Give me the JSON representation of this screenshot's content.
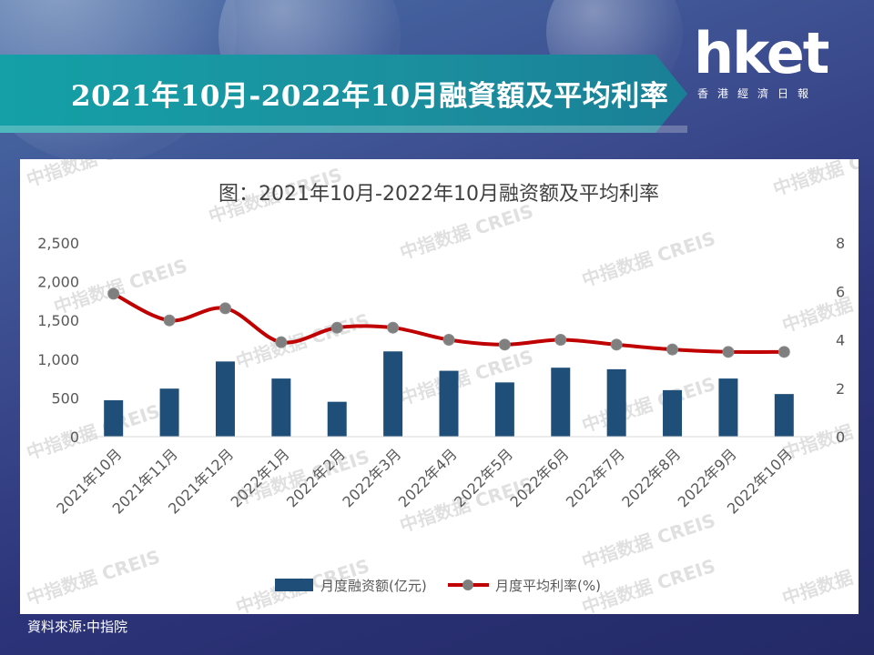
{
  "header": {
    "title": "2021年10月-2022年10月融資額及平均利率"
  },
  "logo": {
    "brand": "hket",
    "subtitle": "香港經濟日報"
  },
  "source": "資料來源:中指院",
  "watermark": "中指数据 CREIS",
  "colors": {
    "bar": "#1f4e79",
    "line": "#c00000",
    "marker": "#7f7f7f",
    "banner": "#14a0a6"
  },
  "chart_data": {
    "type": "bar",
    "title": "图：2021年10月-2022年10月融资额及平均利率",
    "categories": [
      "2021年10月",
      "2021年11月",
      "2021年12月",
      "2022年1月",
      "2022年2月",
      "2022年3月",
      "2022年4月",
      "2022年5月",
      "2022年6月",
      "2022年7月",
      "2022年8月",
      "2022年9月",
      "2022年10月"
    ],
    "series": [
      {
        "name": "月度融资额(亿元)",
        "type": "bar",
        "axis": "left",
        "values": [
          470,
          620,
          970,
          750,
          450,
          1100,
          850,
          700,
          890,
          870,
          600,
          750,
          550
        ]
      },
      {
        "name": "月度平均利率(%)",
        "type": "line",
        "axis": "right",
        "values": [
          5.9,
          4.8,
          5.3,
          3.9,
          4.5,
          4.5,
          4.0,
          3.8,
          4.0,
          3.8,
          3.6,
          3.5,
          3.5
        ]
      }
    ],
    "ylim_left": [
      0,
      2500
    ],
    "yticks_left": [
      "0",
      "500",
      "1,000",
      "1,500",
      "2,000",
      "2,500"
    ],
    "ylim_right": [
      0,
      8
    ],
    "yticks_right": [
      "0",
      "2",
      "4",
      "6",
      "8"
    ],
    "grid": false,
    "legend": "bottom"
  }
}
